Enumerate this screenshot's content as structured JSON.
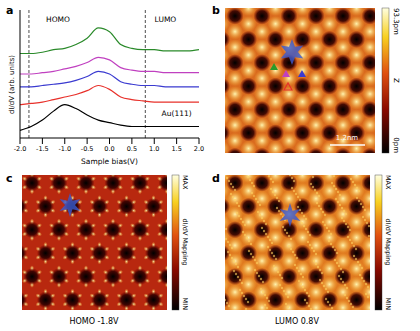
{
  "chart_data": {
    "type": "line",
    "label": "a",
    "xlabel": "Sample bias(V)",
    "ylabel": "dI/dV (arb. units)",
    "x": [
      -2,
      -1.75,
      -1.5,
      -1.25,
      -1,
      -0.75,
      -0.5,
      -0.25,
      0,
      0.25,
      0.5,
      0.75,
      1,
      1.25,
      1.5,
      1.75,
      2
    ],
    "series": [
      {
        "color": "#000000",
        "values": [
          0.6,
          0.9,
          1.4,
          2.1,
          2.6,
          2.3,
          1.8,
          1.4,
          1.2,
          1.0,
          0.9,
          0.9,
          0.9,
          0.9,
          0.9,
          0.9,
          0.9
        ]
      },
      {
        "color": "#e8302a",
        "values": [
          2.6,
          2.7,
          2.8,
          3.0,
          3.2,
          3.4,
          3.7,
          4.1,
          3.8,
          3.2,
          3.0,
          2.9,
          2.8,
          2.8,
          2.8,
          2.8,
          2.8
        ]
      },
      {
        "color": "#3a3ad0",
        "values": [
          4.0,
          4.0,
          4.1,
          4.2,
          4.3,
          4.5,
          4.8,
          5.2,
          5.0,
          4.4,
          4.2,
          4.1,
          4.1,
          4.0,
          4.0,
          4.0,
          4.0
        ]
      },
      {
        "color": "#c040c0",
        "values": [
          5.0,
          5.0,
          5.1,
          5.2,
          5.4,
          5.6,
          5.9,
          6.3,
          6.1,
          5.5,
          5.3,
          5.2,
          5.2,
          5.1,
          5.1,
          5.1,
          5.1
        ]
      },
      {
        "color": "#2a8a2a",
        "values": [
          6.6,
          6.6,
          6.7,
          6.9,
          7.0,
          7.3,
          7.8,
          8.6,
          8.3,
          7.3,
          7.0,
          6.9,
          6.9,
          6.8,
          6.8,
          6.8,
          6.9
        ]
      }
    ],
    "xlim": [
      -2,
      2
    ],
    "xticks": [
      {
        "value": -2,
        "label": "-2.0"
      },
      -1.5,
      {
        "value": -1,
        "label": "-1.0"
      },
      -0.5,
      {
        "value": 0,
        "label": "0.0"
      },
      0.5,
      {
        "value": 1,
        "label": "1.0"
      },
      1.5,
      {
        "value": 2,
        "label": "2.0"
      }
    ],
    "ylim": [
      0,
      10
    ],
    "tick_labels": "x",
    "vlines": [
      -1.8,
      0.8
    ],
    "annotations": [
      "HOMO",
      "LUMO",
      "Au(111)"
    ]
  },
  "panels": [
    {
      "label": "b",
      "colorbar": {
        "title": "Z",
        "range": [
          0,
          93.3
        ],
        "ticks": [
          {
            "value": 0,
            "label": "0pm"
          },
          {
            "value": 93.3,
            "label": "93.3pm"
          }
        ]
      },
      "scale_bar": "1.2nm"
    },
    {
      "label": "c",
      "caption": "HOMO -1.8V",
      "colorbar": {
        "title": "dI/dV Mapping",
        "max_label": "MAX",
        "min_label": "MIN"
      }
    },
    {
      "label": "d",
      "caption": "LUMO 0.8V",
      "colorbar": {
        "title": "dI/dV Mapping",
        "max_label": "MAX",
        "min_label": "MIN"
      }
    }
  ]
}
